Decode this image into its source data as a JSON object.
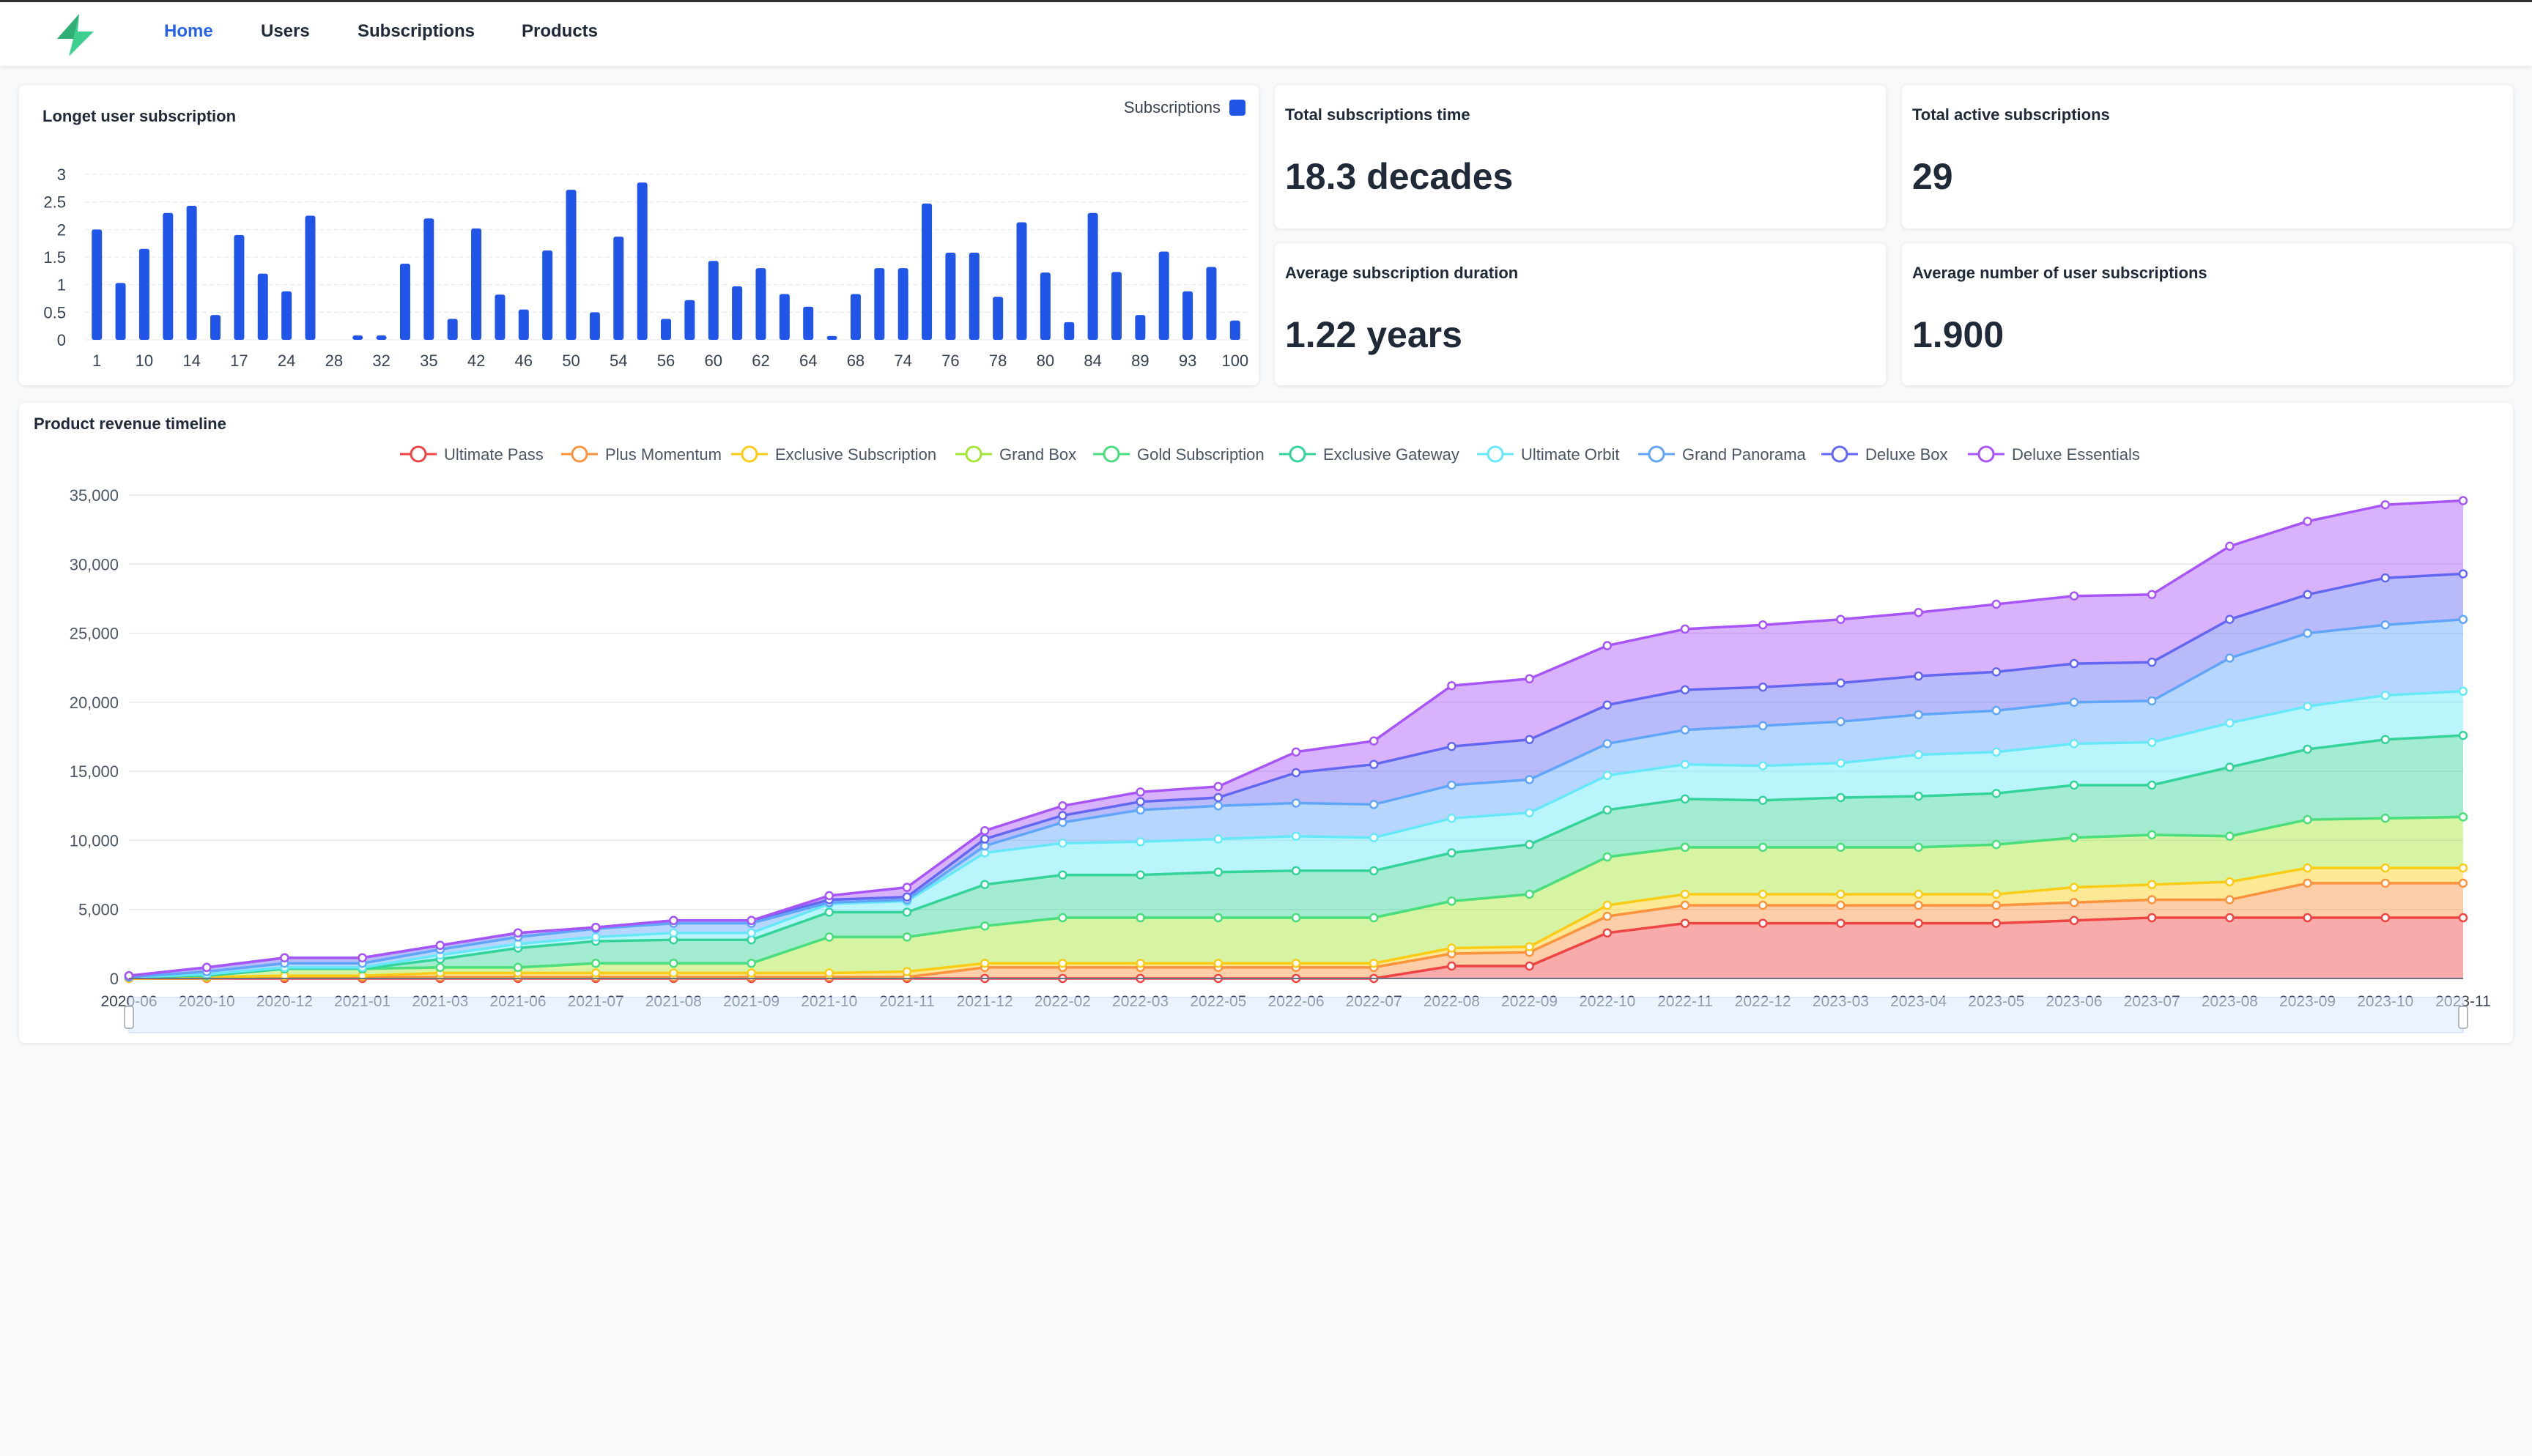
{
  "nav": {
    "items": [
      {
        "label": "Home",
        "active": true
      },
      {
        "label": "Users",
        "active": false
      },
      {
        "label": "Subscriptions",
        "active": false
      },
      {
        "label": "Products",
        "active": false
      }
    ]
  },
  "colors": {
    "accent": "#2563eb",
    "logo": "#3ecf8e",
    "bar": "#2155e8"
  },
  "bar_card": {
    "title": "Longet user subscription",
    "legend_label": "Subscriptions"
  },
  "stats": [
    {
      "title": "Total subscriptions time",
      "value": "18.3 decades"
    },
    {
      "title": "Total active subscriptions",
      "value": "29"
    },
    {
      "title": "Average subscription duration",
      "value": "1.22 years"
    },
    {
      "title": "Average number of user subscriptions",
      "value": "1.900"
    }
  ],
  "area_card": {
    "title": "Product revenue timeline"
  },
  "chart_data": [
    {
      "type": "bar",
      "title": "Longet user subscription",
      "series": [
        {
          "name": "Subscriptions",
          "color": "#2155e8",
          "values": [
            2.0,
            1.03,
            1.65,
            2.3,
            2.43,
            0.45,
            1.9,
            1.2,
            0.88,
            2.25,
            0.0,
            0.08,
            0.08,
            1.38,
            2.2,
            0.38,
            2.02,
            0.82,
            0.55,
            1.62,
            2.72,
            0.5,
            1.87,
            2.85,
            0.38,
            0.72,
            1.43,
            0.97,
            1.3,
            0.83,
            0.6,
            0.07,
            0.83,
            1.3,
            1.3,
            2.47,
            1.58,
            1.58,
            0.78,
            2.13,
            1.22,
            0.32,
            2.3,
            1.23,
            0.45,
            1.6,
            0.88,
            1.32,
            0.35
          ]
        }
      ],
      "ylim": [
        0,
        3
      ],
      "yticks": [
        "0",
        "0.5",
        "1",
        "1.5",
        "2",
        "2.5",
        "3"
      ],
      "xtick_labels": [
        "1",
        "10",
        "14",
        "17",
        "24",
        "28",
        "32",
        "35",
        "42",
        "46",
        "50",
        "54",
        "56",
        "60",
        "62",
        "64",
        "68",
        "74",
        "76",
        "78",
        "80",
        "84",
        "89",
        "93",
        "100"
      ],
      "grid": true,
      "legend": "top-right"
    },
    {
      "type": "area",
      "title": "Product revenue timeline",
      "stacked": true,
      "x": [
        "2020-06",
        "2020-10",
        "2020-12",
        "2021-01",
        "2021-03",
        "2021-06",
        "2021-07",
        "2021-08",
        "2021-09",
        "2021-10",
        "2021-11",
        "2021-12",
        "2022-02",
        "2022-03",
        "2022-05",
        "2022-06",
        "2022-07",
        "2022-08",
        "2022-09",
        "2022-10",
        "2022-11",
        "2022-12",
        "2023-03",
        "2023-04",
        "2023-05",
        "2023-06",
        "2023-07",
        "2023-08",
        "2023-09",
        "2023-10",
        "2023-11"
      ],
      "x_tick_labels": [
        "2020-06",
        "2020-10",
        "2020-12",
        "2021-01",
        "2021-03",
        "2021-06",
        "2021-07",
        "2021-08",
        "2021-09",
        "2021-10",
        "2021-11",
        "2021-12",
        "2022-02",
        "2022-03",
        "2022-05",
        "2022-06",
        "2022-07",
        "2022-08",
        "2022-09",
        "2022-10",
        "2022-11",
        "2022-12",
        "2023-03",
        "2023-04",
        "2023-05",
        "2023-06",
        "2023-07",
        "2023-08",
        "2023-09",
        "2023-10",
        "2023-11"
      ],
      "ylim": [
        0,
        35000
      ],
      "yticks": [
        "0",
        "5,000",
        "10,000",
        "15,000",
        "20,000",
        "25,000",
        "30,000",
        "35,000"
      ],
      "legend": "top-center",
      "grid": true,
      "series": [
        {
          "name": "Ultimate Pass",
          "color": "#ef4444",
          "values": [
            0,
            0,
            0,
            0,
            0,
            0,
            0,
            0,
            0,
            0,
            0,
            0,
            0,
            0,
            0,
            0,
            0,
            900,
            900,
            3300,
            4000,
            4000,
            4000,
            4000,
            4000,
            4200,
            4400,
            4400,
            4400,
            4400,
            4400
          ]
        },
        {
          "name": "Plus Momentum",
          "color": "#fb923c",
          "values": [
            0,
            0,
            100,
            100,
            100,
            100,
            100,
            100,
            100,
            100,
            100,
            800,
            800,
            800,
            800,
            800,
            800,
            900,
            1000,
            1200,
            1300,
            1300,
            1300,
            1300,
            1300,
            1300,
            1300,
            1300,
            2500,
            2500,
            2500
          ]
        },
        {
          "name": "Exclusive Subscription",
          "color": "#facc15",
          "values": [
            0,
            100,
            100,
            100,
            300,
            300,
            300,
            300,
            300,
            300,
            400,
            300,
            300,
            300,
            300,
            300,
            300,
            400,
            400,
            800,
            800,
            800,
            800,
            800,
            800,
            1100,
            1100,
            1300,
            1100,
            1100,
            1100
          ]
        },
        {
          "name": "Grand Box",
          "color": "#a3e635",
          "values": [
            100,
            100,
            500,
            500,
            400,
            400,
            700,
            700,
            700,
            2600,
            2500,
            2700,
            3300,
            3300,
            3300,
            3300,
            3300,
            3400,
            3800,
            3500,
            3400,
            3400,
            3400,
            3400,
            3600,
            3600,
            3600,
            3300,
            3500,
            3600,
            3700
          ]
        },
        {
          "name": "Gold Subscription",
          "color": "#4ade80",
          "values": [
            0,
            0,
            0,
            0,
            0,
            0,
            0,
            0,
            0,
            0,
            0,
            0,
            0,
            0,
            0,
            0,
            0,
            0,
            0,
            0,
            0,
            0,
            0,
            0,
            0,
            0,
            0,
            0,
            0,
            0,
            0
          ]
        },
        {
          "name": "Exclusive Gateway",
          "color": "#34d399",
          "values": [
            0,
            0,
            0,
            0,
            600,
            1400,
            1600,
            1700,
            1700,
            1800,
            1800,
            3000,
            3100,
            3100,
            3300,
            3400,
            3400,
            3500,
            3600,
            3400,
            3500,
            3400,
            3600,
            3700,
            3700,
            3800,
            3600,
            5000,
            5100,
            5700,
            5900
          ]
        },
        {
          "name": "Ultimate Orbit",
          "color": "#67e8f9",
          "values": [
            0,
            100,
            100,
            100,
            300,
            300,
            300,
            500,
            500,
            600,
            800,
            2300,
            2300,
            2400,
            2400,
            2500,
            2400,
            2500,
            2300,
            2500,
            2500,
            2500,
            2500,
            3000,
            3000,
            3000,
            3100,
            3200,
            3100,
            3200,
            3200
          ]
        },
        {
          "name": "Grand Panorama",
          "color": "#60a5fa",
          "values": [
            0,
            200,
            300,
            300,
            400,
            500,
            600,
            700,
            700,
            100,
            100,
            500,
            1500,
            2300,
            2400,
            2400,
            2400,
            2400,
            2400,
            2300,
            2500,
            2900,
            3000,
            2900,
            3000,
            3000,
            3000,
            4700,
            5300,
            5100,
            5200
          ]
        },
        {
          "name": "Deluxe Box",
          "color": "#6366f1",
          "values": [
            100,
            300,
            400,
            400,
            300,
            300,
            100,
            200,
            200,
            200,
            200,
            500,
            500,
            600,
            600,
            2200,
            2900,
            2800,
            2900,
            2800,
            2900,
            2800,
            2800,
            2800,
            2800,
            2800,
            2800,
            2800,
            2800,
            3400,
            3300
          ]
        },
        {
          "name": "Deluxe Essentials",
          "color": "#a855f7",
          "values": [
            0,
            0,
            0,
            0,
            0,
            0,
            0,
            0,
            0,
            300,
            700,
            600,
            700,
            700,
            800,
            1500,
            1700,
            4400,
            4400,
            4300,
            4400,
            4500,
            4600,
            4600,
            4900,
            4900,
            4900,
            5300,
            5300,
            5300,
            5300
          ]
        }
      ]
    }
  ]
}
